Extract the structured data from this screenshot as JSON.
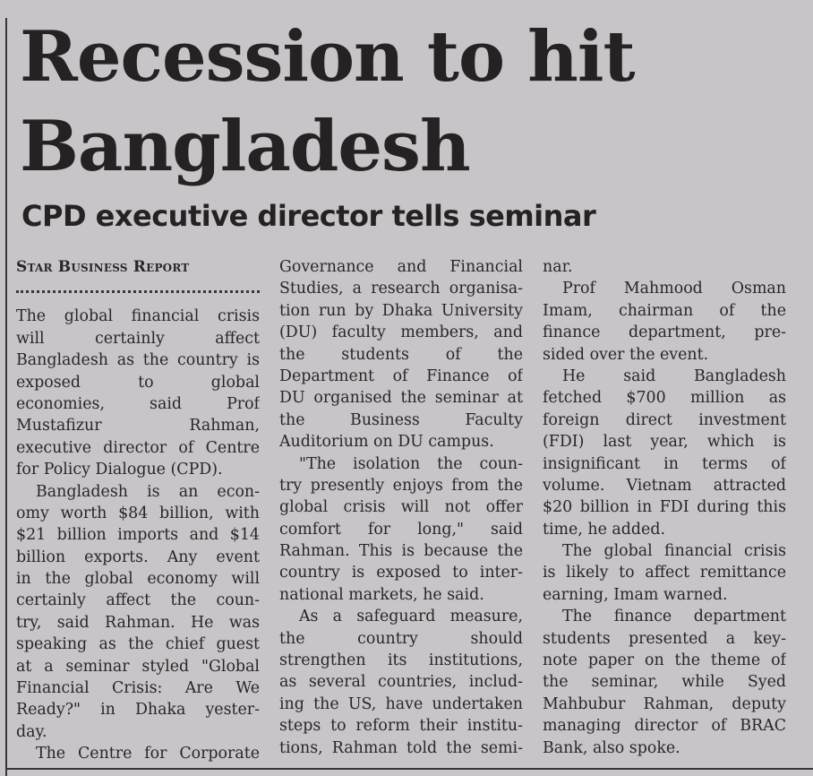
{
  "headline": [
    "Recession to hit",
    "Bangladesh"
  ],
  "subheadline": "CPD executive director tells seminar",
  "byline": "Star Business Report",
  "columns": [
    {
      "paragraphs": [
        {
          "continues_from_previous": false,
          "continues_to_next": false,
          "lines": [
            "The global financial crisis",
            "will certainly affect",
            "Bangladesh as the country is",
            "exposed to global",
            "economies, said Prof",
            "Mustafizur Rahman,",
            "executive director of Centre",
            "for Policy Dialogue (CPD)."
          ],
          "no_indent": true
        },
        {
          "continues_from_previous": false,
          "continues_to_next": false,
          "lines": [
            "Bangladesh is an econ-",
            "omy worth $84 billion, with",
            "$21 billion imports and $14",
            "billion exports. Any event",
            "in the global economy will",
            "certainly affect the coun-",
            "try, said Rahman. He was",
            "speaking as the chief guest",
            "at a seminar styled \"Global",
            "Financial Crisis: Are We",
            "Ready?\" in Dhaka yester-",
            "day."
          ]
        },
        {
          "continues_from_previous": false,
          "continues_to_next": true,
          "lines": [
            "The Centre for Corporate"
          ]
        }
      ]
    },
    {
      "paragraphs": [
        {
          "continues_from_previous": true,
          "continues_to_next": false,
          "lines": [
            "Governance and Financial",
            "Studies, a research organisa-",
            "tion run by Dhaka University",
            "(DU) faculty members, and",
            "the students of the",
            "Department of Finance of",
            "DU organised the seminar at",
            "the Business Faculty",
            "Auditorium on DU campus."
          ]
        },
        {
          "continues_from_previous": false,
          "continues_to_next": false,
          "lines": [
            "\"The isolation the coun-",
            "try presently enjoys from the",
            "global crisis will not offer",
            "comfort for long,\" said",
            "Rahman. This is because the",
            "country is exposed to inter-",
            "national markets, he said."
          ]
        },
        {
          "continues_from_previous": false,
          "continues_to_next": true,
          "lines": [
            "As a safeguard measure,",
            "the country should",
            "strengthen its institutions,",
            "as several countries, includ-",
            "ing the US, have undertaken",
            "steps to reform their institu-",
            "tions, Rahman told the semi-"
          ]
        }
      ]
    },
    {
      "paragraphs": [
        {
          "continues_from_previous": true,
          "continues_to_next": false,
          "lines": [
            "nar."
          ]
        },
        {
          "continues_from_previous": false,
          "continues_to_next": false,
          "lines": [
            "Prof Mahmood Osman",
            "Imam, chairman of the",
            "finance department, pre-",
            "sided over the event."
          ]
        },
        {
          "continues_from_previous": false,
          "continues_to_next": false,
          "lines": [
            "He said Bangladesh",
            "fetched $700 million as",
            "foreign direct investment",
            "(FDI) last year, which is",
            "insignificant in terms of",
            "volume. Vietnam attracted",
            "$20 billion in FDI during this",
            "time, he added."
          ]
        },
        {
          "continues_from_previous": false,
          "continues_to_next": false,
          "lines": [
            "The global financial crisis",
            "is likely to affect remittance",
            "earning, Imam warned."
          ]
        },
        {
          "continues_from_previous": false,
          "continues_to_next": false,
          "lines": [
            "The finance department",
            "students presented a key-",
            "note paper on the theme of",
            "the seminar, while Syed",
            "Mahbubur Rahman, deputy",
            "managing director of BRAC",
            "Bank, also spoke."
          ]
        }
      ]
    }
  ]
}
